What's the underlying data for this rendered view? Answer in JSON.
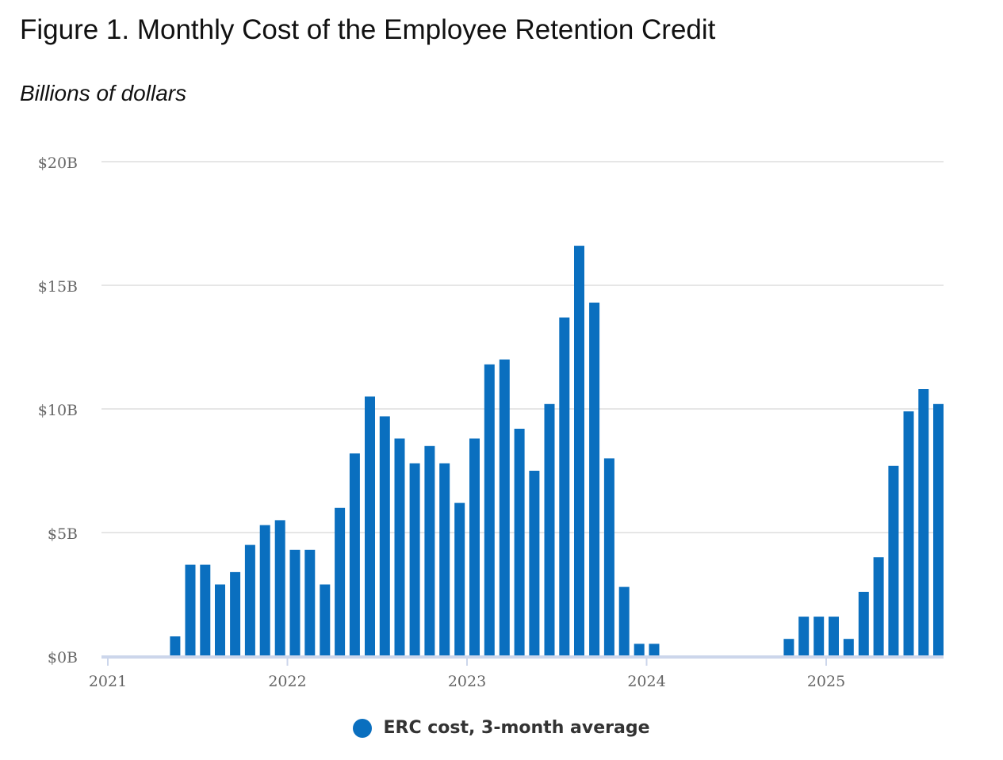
{
  "title": "Figure 1. Monthly Cost of the Employee Retention Credit",
  "subtitle": "Billions of dollars",
  "colors": {
    "bar": "#0a6fbf",
    "grid": "#e6e6e6",
    "axis": "#ccd6eb",
    "tick_text": "#666666"
  },
  "legend": {
    "label": "ERC cost, 3-month average",
    "icon": "circle-marker"
  },
  "chart_data": {
    "type": "bar",
    "title": "Figure 1. Monthly Cost of the Employee Retention Credit",
    "ylabel": "Billions of dollars",
    "xlabel": "",
    "ylim": [
      0,
      20
    ],
    "y_ticks": [
      0,
      5,
      10,
      15,
      20
    ],
    "y_tick_labels": [
      "$0B",
      "$5B",
      "$10B",
      "$15B",
      "$20B"
    ],
    "x_ticks": [
      2021,
      2022,
      2023,
      2024,
      2025
    ],
    "x_tick_labels": [
      "2021",
      "2022",
      "2023",
      "2024",
      "2025"
    ],
    "x_range": [
      2021.0,
      2025.7
    ],
    "grid": true,
    "series": [
      {
        "name": "ERC cost, 3-month average",
        "x": [
          2021.0,
          2021.083,
          2021.167,
          2021.25,
          2021.333,
          2021.417,
          2021.5,
          2021.583,
          2021.667,
          2021.75,
          2021.833,
          2021.917,
          2022.0,
          2022.083,
          2022.167,
          2022.25,
          2022.333,
          2022.417,
          2022.5,
          2022.583,
          2022.667,
          2022.75,
          2022.833,
          2022.917,
          2023.0,
          2023.083,
          2023.167,
          2023.25,
          2023.333,
          2023.417,
          2023.5,
          2023.583,
          2023.667,
          2023.75,
          2023.833,
          2023.917,
          2024.0,
          2024.083,
          2024.167,
          2024.25,
          2024.333,
          2024.417,
          2024.5,
          2024.583,
          2024.667,
          2024.75,
          2024.833,
          2024.917,
          2025.0,
          2025.083,
          2025.167,
          2025.25,
          2025.333,
          2025.417,
          2025.5,
          2025.583
        ],
        "values": [
          0,
          0,
          0,
          0,
          0.8,
          3.7,
          3.7,
          2.9,
          3.4,
          4.5,
          5.3,
          5.5,
          4.3,
          4.3,
          2.9,
          6.0,
          8.2,
          10.5,
          9.7,
          8.8,
          7.8,
          8.5,
          7.8,
          6.2,
          8.8,
          11.8,
          12.0,
          9.2,
          7.5,
          10.2,
          13.7,
          16.6,
          14.3,
          8.0,
          2.8,
          0.5,
          0.5,
          0,
          0,
          0,
          0,
          0,
          0,
          0,
          0,
          0.7,
          1.6,
          1.6,
          1.6,
          0.7,
          2.6,
          4.0,
          7.7,
          9.9,
          10.8,
          10.2
        ]
      }
    ]
  }
}
